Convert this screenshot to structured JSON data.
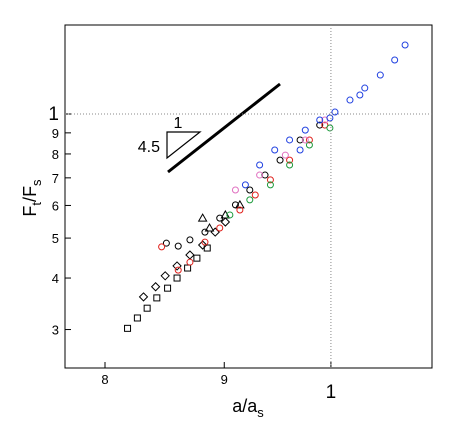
{
  "chart_data": {
    "type": "scatter",
    "log_x": true,
    "log_y": true,
    "xlabel": [
      "a/a",
      "s"
    ],
    "ylabel": [
      "F",
      "t",
      "/F",
      "s"
    ],
    "xlim": [
      0.769,
      1.105
    ],
    "ylim": [
      0.242,
      1.644
    ],
    "xticks": [
      {
        "value": 0.8,
        "label": "8"
      },
      {
        "value": 0.9,
        "label": "9"
      },
      1
    ],
    "yticks": [
      {
        "value": 0.3,
        "label": "3"
      },
      {
        "value": 0.4,
        "label": "4"
      },
      {
        "value": 0.5,
        "label": "5"
      },
      {
        "value": 0.6,
        "label": "6"
      },
      {
        "value": 0.7,
        "label": "7"
      },
      {
        "value": 0.8,
        "label": "8"
      },
      {
        "value": 0.9,
        "label": "9"
      },
      1
    ],
    "guide_x": 1,
    "guide_y": 1,
    "annotations": [
      "4.5",
      "1"
    ],
    "series": [
      {
        "marker": "square",
        "color": "#000000",
        "x": [
          0.818,
          0.826,
          0.834,
          0.842,
          0.851,
          0.859,
          0.868,
          0.876,
          0.885
        ],
        "y": [
          0.302,
          0.32,
          0.338,
          0.358,
          0.378,
          0.4,
          0.423,
          0.447,
          0.473
        ]
      },
      {
        "marker": "diamond",
        "color": "#000000",
        "x": [
          0.831,
          0.841,
          0.849,
          0.859,
          0.87,
          0.881,
          0.892,
          0.901
        ],
        "y": [
          0.36,
          0.381,
          0.405,
          0.428,
          0.455,
          0.481,
          0.517,
          0.547
        ]
      },
      {
        "marker": "circle",
        "color": "#000000",
        "x": [
          0.85,
          0.86,
          0.87,
          0.883,
          0.896,
          0.91,
          0.923,
          0.937,
          0.951,
          0.97,
          0.989
        ],
        "y": [
          0.486,
          0.478,
          0.495,
          0.517,
          0.559,
          0.602,
          0.654,
          0.711,
          0.773,
          0.865,
          0.94
        ]
      },
      {
        "marker": "triangle",
        "color": "#000000",
        "x": [
          0.881,
          0.887,
          0.901,
          0.914
        ],
        "y": [
          0.559,
          0.529,
          0.569,
          0.602
        ]
      },
      {
        "marker": "circle",
        "color": "#e0201b",
        "x": [
          0.846,
          0.883,
          0.86,
          0.87,
          0.896,
          0.914,
          0.928,
          0.942,
          0.96,
          0.979,
          0.994
        ],
        "y": [
          0.476,
          0.489,
          0.418,
          0.437,
          0.529,
          0.585,
          0.636,
          0.692,
          0.773,
          0.865,
          0.94
        ]
      },
      {
        "marker": "circle",
        "color": "#1a9a3a",
        "x": [
          0.905,
          0.923,
          0.942,
          0.96,
          0.979,
          0.999
        ],
        "y": [
          0.569,
          0.619,
          0.673,
          0.752,
          0.841,
          0.925
        ]
      },
      {
        "marker": "circle",
        "color": "#e070c0",
        "x": [
          0.91,
          0.932,
          0.956,
          0.975,
          0.994
        ],
        "y": [
          0.654,
          0.711,
          0.795,
          0.865,
          0.967
        ]
      },
      {
        "marker": "circle",
        "color": "#2040e0",
        "x": [
          0.919,
          0.932,
          0.946,
          0.96,
          0.975,
          0.989,
          1.004,
          1.019,
          1.034,
          1.05,
          1.065,
          1.076,
          0.97,
          0.999,
          1.029
        ],
        "y": [
          0.673,
          0.752,
          0.818,
          0.865,
          0.914,
          0.967,
          1.011,
          1.081,
          1.156,
          1.243,
          1.352,
          1.47,
          0.818,
          0.978,
          1.112
        ]
      }
    ]
  }
}
